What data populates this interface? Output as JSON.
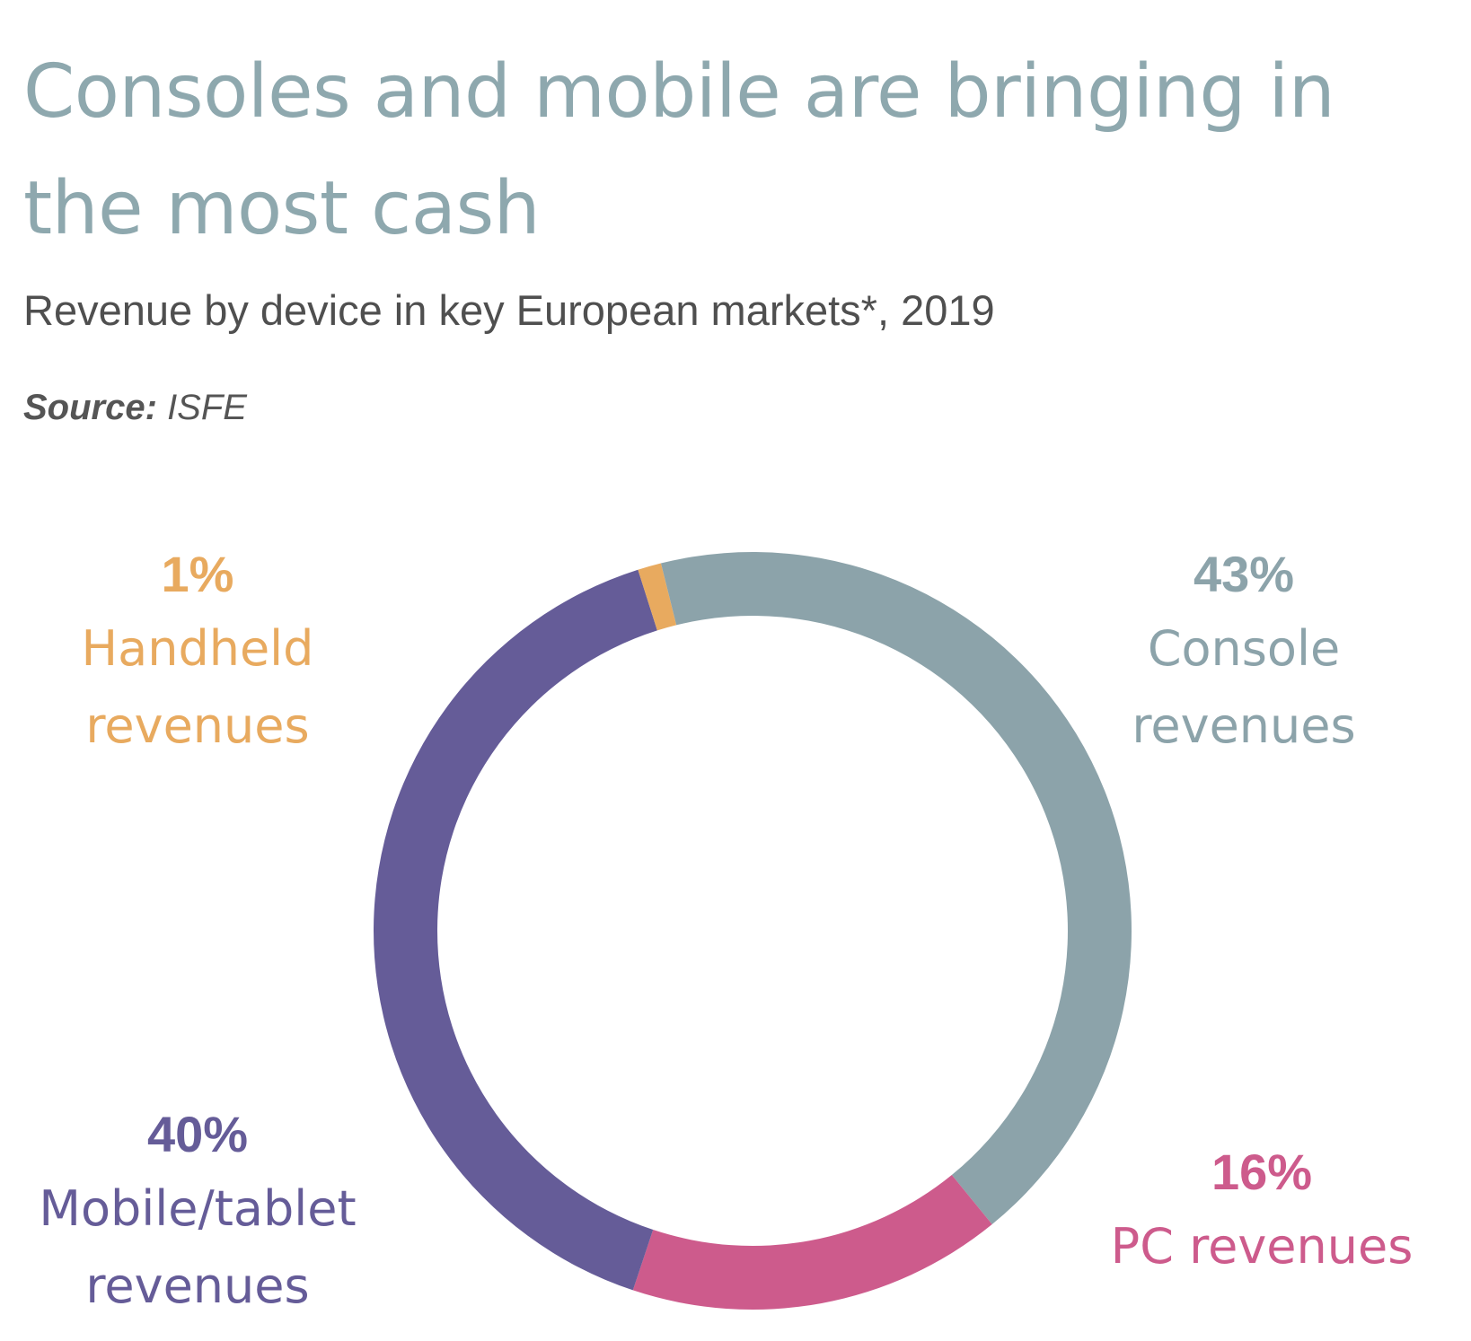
{
  "title": "Consoles and mobile are bringing in the most cash",
  "subtitle": "Revenue by device in key European markets*, 2019",
  "source_label": "Source:",
  "source_value": "ISFE",
  "chart_data": {
    "type": "pie",
    "variant": "donut",
    "slices": [
      {
        "key": "console",
        "label_line1": "Console",
        "label_line2": "revenues",
        "value": 43,
        "pct": "43%",
        "color": "#8ca3aa"
      },
      {
        "key": "pc",
        "label_line1": "PC revenues",
        "label_line2": "",
        "value": 16,
        "pct": "16%",
        "color": "#cd5b8c"
      },
      {
        "key": "mobile",
        "label_line1": "Mobile/tablet",
        "label_line2": "revenues",
        "value": 40,
        "pct": "40%",
        "color": "#655c98"
      },
      {
        "key": "handheld",
        "label_line1": "Handheld",
        "label_line2": "revenues",
        "value": 1,
        "pct": "1%",
        "color": "#e8aa5f"
      }
    ]
  }
}
